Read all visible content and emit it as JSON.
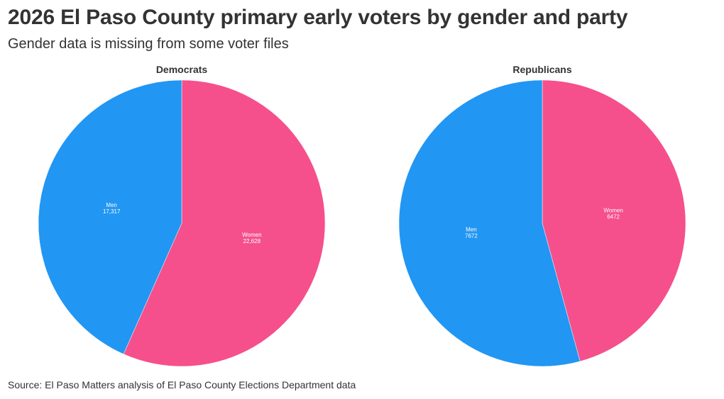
{
  "header": {
    "title": "2026 El Paso County primary early voters by gender and party",
    "subtitle": "Gender data is missing from some voter files"
  },
  "footer": {
    "source": "Source: El Paso Matters analysis of El Paso County Elections Department data"
  },
  "colors": {
    "men": "#2196F3",
    "women": "#F5508B"
  },
  "chart_data": [
    {
      "type": "pie",
      "title": "Democrats",
      "start_angle_deg": 0,
      "direction": "clockwise",
      "slices": [
        {
          "label": "Women",
          "value": 22628,
          "display": "22,628",
          "color": "#F5508B"
        },
        {
          "label": "Men",
          "value": 17317,
          "display": "17,317",
          "color": "#2196F3"
        }
      ]
    },
    {
      "type": "pie",
      "title": "Republicans",
      "start_angle_deg": 0,
      "direction": "clockwise",
      "slices": [
        {
          "label": "Women",
          "value": 6472,
          "display": "6472",
          "color": "#F5508B"
        },
        {
          "label": "Men",
          "value": 7672,
          "display": "7672",
          "color": "#2196F3"
        }
      ]
    }
  ]
}
